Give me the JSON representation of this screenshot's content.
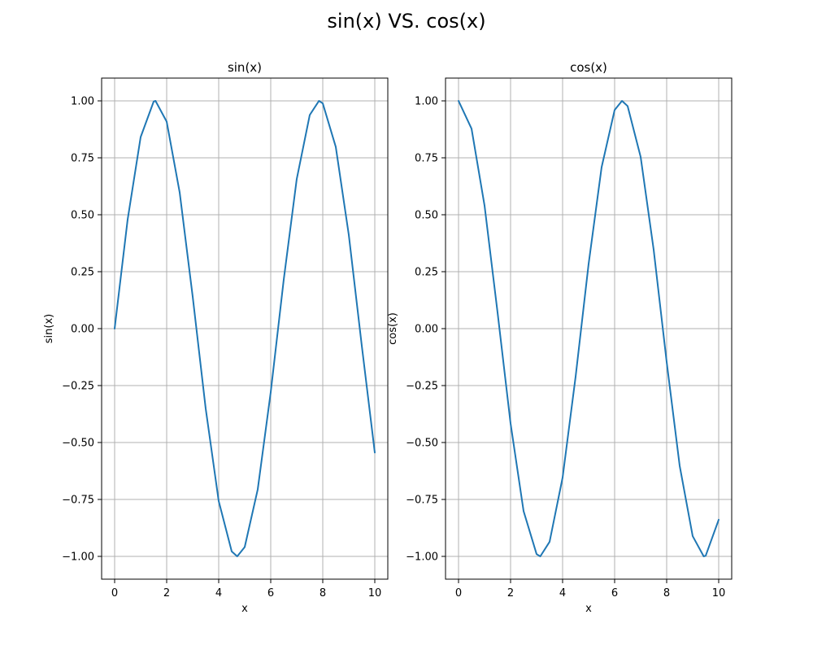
{
  "figure": {
    "suptitle": "sin(x) VS. cos(x)"
  },
  "chart_data": [
    {
      "type": "line",
      "title": "sin(x)",
      "xlabel": "x",
      "ylabel": "sin(x)",
      "xlim": [
        -0.5,
        10.5
      ],
      "ylim": [
        -1.1,
        1.1
      ],
      "xticks": [
        0,
        2,
        4,
        6,
        8,
        10
      ],
      "xtick_labels": [
        "0",
        "2",
        "4",
        "6",
        "8",
        "10"
      ],
      "yticks": [
        -1.0,
        -0.75,
        -0.5,
        -0.25,
        0.0,
        0.25,
        0.5,
        0.75,
        1.0
      ],
      "ytick_labels": [
        "−1.00",
        "−0.75",
        "−0.50",
        "−0.25",
        "0.00",
        "0.25",
        "0.50",
        "0.75",
        "1.00"
      ],
      "grid": true,
      "line_color": "#1f77b4",
      "series": [
        {
          "x": [
            0,
            0.5,
            1,
            1.5,
            1.571,
            2,
            2.5,
            3,
            3.5,
            4,
            4.5,
            4.712,
            5,
            5.5,
            6,
            6.5,
            7,
            7.5,
            7.854,
            8,
            8.5,
            9,
            9.5,
            10
          ],
          "y": [
            0.0,
            0.479,
            0.841,
            0.997,
            1.0,
            0.909,
            0.598,
            0.141,
            -0.351,
            -0.757,
            -0.978,
            -1.0,
            -0.959,
            -0.706,
            -0.279,
            0.215,
            0.657,
            0.938,
            1.0,
            0.989,
            0.798,
            0.412,
            -0.075,
            -0.544
          ]
        }
      ]
    },
    {
      "type": "line",
      "title": "cos(x)",
      "xlabel": "x",
      "ylabel": "cos(x)",
      "xlim": [
        -0.5,
        10.5
      ],
      "ylim": [
        -1.1,
        1.1
      ],
      "xticks": [
        0,
        2,
        4,
        6,
        8,
        10
      ],
      "xtick_labels": [
        "0",
        "2",
        "4",
        "6",
        "8",
        "10"
      ],
      "yticks": [
        -1.0,
        -0.75,
        -0.5,
        -0.25,
        0.0,
        0.25,
        0.5,
        0.75,
        1.0
      ],
      "ytick_labels": [
        "−1.00",
        "−0.75",
        "−0.50",
        "−0.25",
        "0.00",
        "0.25",
        "0.50",
        "0.75",
        "1.00"
      ],
      "grid": true,
      "line_color": "#1f77b4",
      "series": [
        {
          "x": [
            0,
            0.5,
            1,
            1.5,
            2,
            2.5,
            3,
            3.142,
            3.5,
            4,
            4.5,
            5,
            5.5,
            6,
            6.283,
            6.5,
            7,
            7.5,
            8,
            8.5,
            9,
            9.425,
            9.5,
            10
          ],
          "y": [
            1.0,
            0.878,
            0.54,
            0.071,
            -0.416,
            -0.801,
            -0.99,
            -1.0,
            -0.936,
            -0.654,
            -0.211,
            0.284,
            0.709,
            0.96,
            1.0,
            0.977,
            0.754,
            0.347,
            -0.146,
            -0.602,
            -0.911,
            -1.0,
            -0.997,
            -0.839
          ]
        }
      ]
    }
  ]
}
